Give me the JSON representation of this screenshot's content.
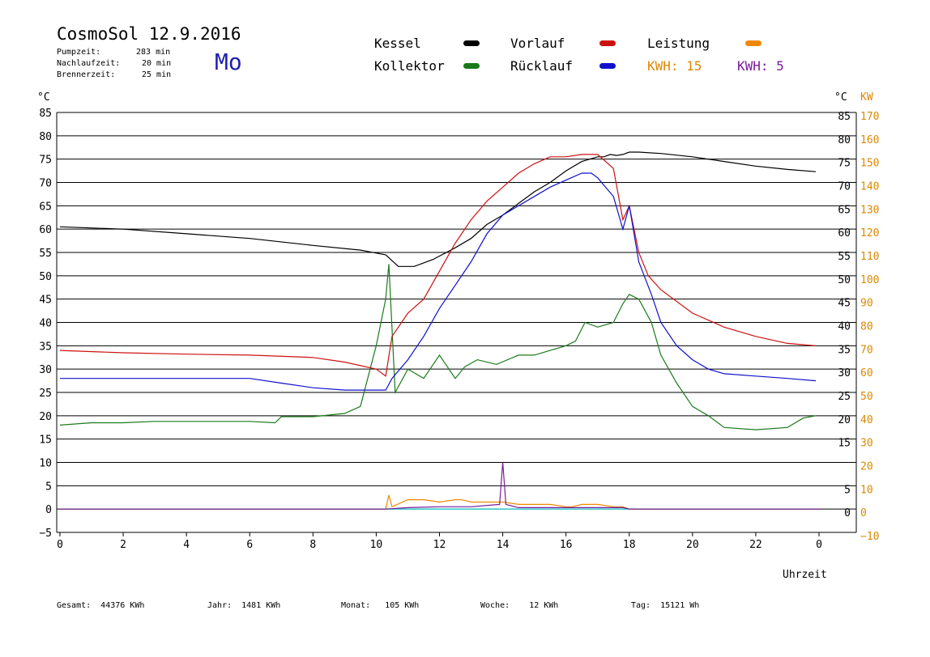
{
  "header": {
    "title": "CosmoSol 12.9.2016",
    "weekday": "Mo",
    "pumpzeit_label": "Pumpzeit:",
    "pumpzeit_value": "283 min",
    "nachlauf_label": "Nachlaufzeit:",
    "nachlauf_value": "20 min",
    "brenner_label": "Brennerzeit:",
    "brenner_value": "25 min"
  },
  "legend": {
    "kessel": "Kessel",
    "kollektor": "Kollektor",
    "vorlauf": "Vorlauf",
    "ruecklauf": "Rücklauf",
    "leistung": "Leistung",
    "kwh1": "KWH: 15",
    "kwh2": "KWH: 5"
  },
  "footer": {
    "gesamt": "Gesamt:  44376 KWh",
    "jahr": "Jahr:  1481 KWh",
    "monat": "Monat:   105 KWh",
    "woche": "Woche:    12 KWh",
    "tag": "Tag:  15121 Wh"
  },
  "colors": {
    "kessel": "#000000",
    "kollektor": "#1a7a1a",
    "vorlauf": "#cc1010",
    "ruecklauf": "#1010cc",
    "leistung": "#ee8800",
    "kwh2": "#7a1a9a",
    "axis_right_kw": "#dd8800",
    "baseline": "#33cccc"
  },
  "chart_data": {
    "type": "line",
    "xlabel": "Uhrzeit",
    "ylabel_left": "°C",
    "ylabel_right": "°C",
    "ylabel_right2": "KW",
    "xlim": [
      0,
      24
    ],
    "ylim": [
      -5,
      85
    ],
    "x_ticks": [
      "0",
      "2",
      "4",
      "6",
      "8",
      "10",
      "12",
      "14",
      "16",
      "18",
      "20",
      "22",
      "0"
    ],
    "y_ticks_left": [
      "85",
      "80",
      "75",
      "70",
      "65",
      "60",
      "55",
      "50",
      "45",
      "40",
      "35",
      "30",
      "25",
      "20",
      "15",
      "10",
      "5",
      "0",
      "−5"
    ],
    "y_ticks_right": [
      "85",
      "80",
      "75",
      "70",
      "65",
      "60",
      "55",
      "50",
      "45",
      "40",
      "35",
      "30",
      "25",
      "20",
      "15",
      "",
      "5",
      "0",
      ""
    ],
    "kw_ticks": [
      "170",
      "160",
      "150",
      "140",
      "130",
      "120",
      "110",
      "100",
      "90",
      "80",
      "70",
      "60",
      "50",
      "40",
      "30",
      "20",
      "10",
      "0",
      "−10"
    ],
    "grid": true,
    "series": [
      {
        "name": "Kessel",
        "x": [
          0,
          2,
          4,
          6,
          8,
          9.5,
          10.3,
          10.7,
          11.2,
          11.8,
          12.5,
          13,
          13.5,
          14,
          14.5,
          15,
          15.5,
          16,
          16.5,
          17,
          17.2,
          17.4,
          17.6,
          17.8,
          18,
          18.3,
          19,
          20,
          21,
          22,
          23,
          23.9
        ],
        "y": [
          60.5,
          60,
          59,
          58,
          56.5,
          55.5,
          54.5,
          52,
          52,
          53.5,
          56,
          58,
          61,
          63,
          65.5,
          68,
          70,
          72.5,
          74.5,
          75.5,
          75.5,
          76,
          75.8,
          76,
          76.5,
          76.5,
          76.2,
          75.5,
          74.5,
          73.5,
          72.8,
          72.3
        ]
      },
      {
        "name": "Kollektor",
        "x": [
          0,
          1,
          2,
          3,
          4,
          5,
          6,
          6.8,
          7,
          8,
          9,
          9.5,
          10,
          10.3,
          10.4,
          10.6,
          11,
          11.5,
          12,
          12.5,
          12.8,
          13.2,
          13.8,
          14.5,
          15,
          15.5,
          16,
          16.3,
          16.6,
          17,
          17.5,
          17.8,
          18,
          18.3,
          18.7,
          19,
          19.5,
          20,
          20.5,
          21,
          22,
          23,
          23.5,
          23.9
        ],
        "y": [
          18,
          18.5,
          18.5,
          18.8,
          18.8,
          18.8,
          18.8,
          18.5,
          19.8,
          19.8,
          20.5,
          22,
          35,
          45,
          52.5,
          25,
          30,
          28,
          33,
          28,
          30.5,
          32,
          31,
          33,
          33,
          34,
          35,
          36,
          40,
          39,
          40,
          44,
          46,
          45,
          40,
          33,
          27,
          22,
          20,
          17.5,
          17,
          17.5,
          19.5,
          20
        ]
      },
      {
        "name": "Vorlauf",
        "x": [
          0,
          2,
          4,
          6,
          8,
          9,
          10,
          10.3,
          10.5,
          11,
          11.5,
          12,
          12.5,
          13,
          13.5,
          14,
          14.5,
          15,
          15.5,
          16,
          16.5,
          17,
          17.5,
          17.8,
          18,
          18.3,
          18.6,
          19,
          20,
          21,
          22,
          23,
          23.9
        ],
        "y": [
          34,
          33.5,
          33.2,
          33,
          32.5,
          31.5,
          30,
          28.5,
          37,
          42,
          45,
          51,
          57,
          62,
          66,
          69,
          72,
          74,
          75.5,
          75.5,
          76,
          76,
          73,
          62,
          65,
          55,
          50,
          47,
          42,
          39,
          37,
          35.5,
          35
        ]
      },
      {
        "name": "Rücklauf",
        "x": [
          0,
          2,
          4,
          6,
          7,
          8,
          9,
          10,
          10.3,
          10.5,
          11,
          11.5,
          12,
          12.5,
          13,
          13.5,
          14,
          14.5,
          15,
          15.5,
          16,
          16.5,
          16.8,
          17,
          17.5,
          17.8,
          18,
          18.3,
          18.7,
          19,
          19.5,
          20,
          20.5,
          21,
          22,
          23,
          23.9
        ],
        "y": [
          28,
          28,
          28,
          28,
          27,
          26,
          25.5,
          25.5,
          25.5,
          28,
          32,
          37,
          43,
          48,
          53,
          59,
          63,
          65,
          67,
          69,
          70.5,
          72,
          72,
          71,
          67,
          60,
          65,
          53,
          46,
          40,
          35,
          32,
          30,
          29,
          28.5,
          28,
          27.5
        ]
      },
      {
        "name": "Leistung",
        "x": [
          0,
          10.3,
          10.4,
          10.5,
          11,
          11.5,
          12,
          12.5,
          12.7,
          13,
          13.5,
          14,
          14.5,
          15,
          15.5,
          16,
          16.2,
          16.5,
          17,
          17.5,
          17.8,
          18,
          24
        ],
        "y": [
          0,
          0,
          3,
          0.5,
          2,
          2,
          1.5,
          2,
          2,
          1.5,
          1.5,
          1.5,
          1,
          1,
          1,
          0.5,
          0.5,
          1,
          1,
          0.5,
          0.5,
          0,
          0
        ]
      },
      {
        "name": "KWH 5",
        "x": [
          0,
          10.3,
          11,
          12,
          13,
          13.9,
          14,
          14.1,
          14.5,
          15,
          16,
          17,
          17.5,
          17.8,
          18,
          24
        ],
        "y": [
          0,
          0,
          0.3,
          0.5,
          0.5,
          1,
          10,
          1,
          0.3,
          0.3,
          0.3,
          0.3,
          0.3,
          0.3,
          0,
          0
        ]
      }
    ]
  }
}
